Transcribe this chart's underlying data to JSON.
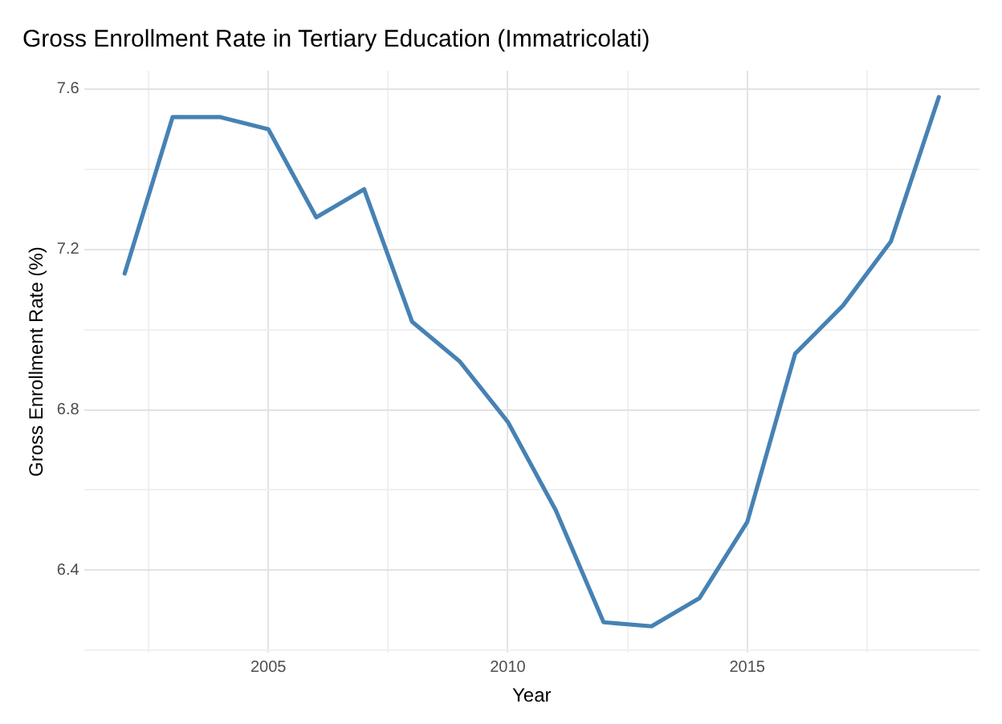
{
  "chart_data": {
    "type": "line",
    "title": "Gross Enrollment Rate in Tertiary Education (Immatricolati)",
    "xlabel": "Year",
    "ylabel": "Gross Enrollment Rate (%)",
    "x": [
      2002,
      2003,
      2004,
      2005,
      2006,
      2007,
      2008,
      2009,
      2010,
      2011,
      2012,
      2013,
      2014,
      2015,
      2016,
      2017,
      2018,
      2019
    ],
    "series": [
      {
        "color": "#4682b4",
        "values": [
          7.14,
          7.53,
          7.53,
          7.5,
          7.28,
          7.35,
          7.02,
          6.92,
          6.77,
          6.55,
          6.27,
          6.26,
          6.33,
          6.52,
          6.94,
          7.06,
          7.22,
          7.58
        ]
      }
    ],
    "xlim": [
      2001.15,
      2019.85
    ],
    "ylim": [
      6.194,
      7.646
    ],
    "xticks": [
      {
        "value": 2002.5,
        "label": null
      },
      2005,
      {
        "value": 2007.5,
        "label": null
      },
      2010,
      {
        "value": 2012.5,
        "label": null
      },
      2015,
      {
        "value": 2017.5,
        "label": null
      }
    ],
    "yticks": [
      {
        "value": 6.2,
        "label": null
      },
      6.4,
      {
        "value": 6.6,
        "label": null
      },
      6.8,
      {
        "value": 7.0,
        "label": null
      },
      7.2,
      {
        "value": 7.4,
        "label": null
      },
      7.6
    ],
    "grid": true,
    "legend": false,
    "marker": "none",
    "line_style": "solid"
  }
}
